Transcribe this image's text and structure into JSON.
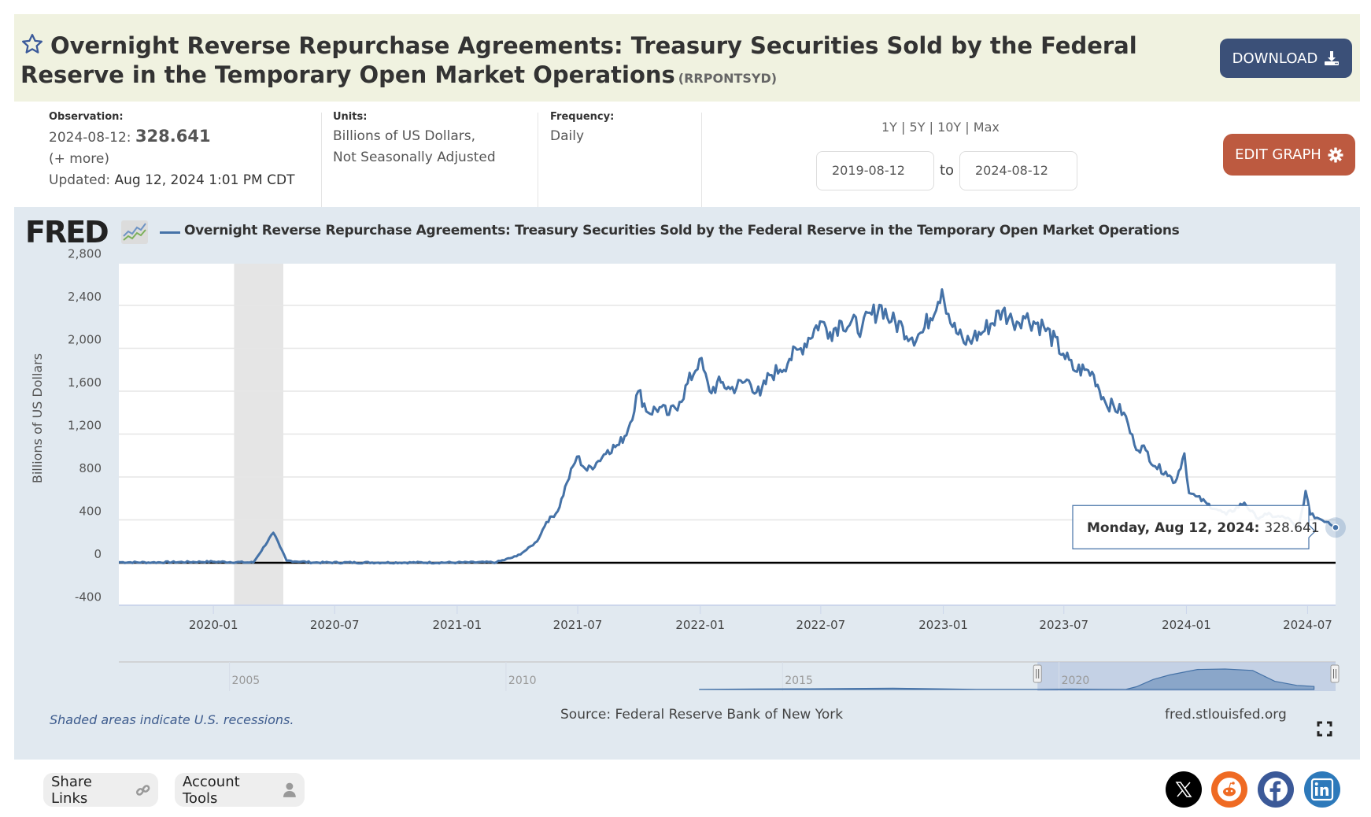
{
  "header": {
    "title": "Overnight Reverse Repurchase Agreements: Treasury Securities Sold by the Federal Reserve in the Temporary Open Market Operations",
    "series_id": "(RRPONTSYD)",
    "download_label": "DOWNLOAD"
  },
  "meta": {
    "observation_label": "Observation:",
    "observation_date": "2024-08-12:",
    "observation_value": "328.641",
    "more_link": "(+ more)",
    "updated_label": "Updated:",
    "updated_value": "Aug 12, 2024 1:01 PM CDT",
    "units_label": "Units:",
    "units_line1": "Billions of US Dollars,",
    "units_line2": "Not Seasonally Adjusted",
    "frequency_label": "Frequency:",
    "frequency_value": "Daily"
  },
  "range": {
    "links": [
      "1Y",
      "5Y",
      "10Y",
      "Max"
    ],
    "separator": "|",
    "start_date": "2019-08-12",
    "to_label": "to",
    "end_date": "2024-08-12",
    "edit_label": "EDIT GRAPH"
  },
  "chart_panel": {
    "logo": "FRED",
    "recession_note": "Shaded areas indicate U.S. recessions.",
    "source": "Source: Federal Reserve Bank of New York",
    "url": "fred.stlouisfed.org",
    "tooltip_date": "Monday, Aug 12, 2024:",
    "tooltip_value": "328.641"
  },
  "colors": {
    "series": "#4572a7",
    "download_button": "#3b5078",
    "edit_button": "#bd5a40",
    "recession_shade": "#e5e5e5",
    "panel_bg": "#e1e9f0",
    "title_bg": "#f0f2e0"
  },
  "chart_data": {
    "type": "line",
    "title": "Overnight Reverse Repurchase Agreements: Treasury Securities Sold by the Federal Reserve in the Temporary Open Market Operations",
    "xlabel": "",
    "ylabel": "Billions of US Dollars",
    "xlim": [
      "2019-08-12",
      "2024-08-12"
    ],
    "ylim": [
      -400,
      2800
    ],
    "yticks": [
      -400,
      0,
      400,
      800,
      1200,
      1600,
      2000,
      2400,
      2800
    ],
    "ytick_labels": [
      "-400",
      "0",
      "400",
      "800",
      "1,200",
      "1,600",
      "2,000",
      "2,400",
      "2,800"
    ],
    "xticks": [
      "2020-01",
      "2020-07",
      "2021-01",
      "2021-07",
      "2022-01",
      "2022-07",
      "2023-01",
      "2023-07",
      "2024-01",
      "2024-07"
    ],
    "grid": true,
    "legend": "top-left",
    "recessions": [
      {
        "start": "2020-02",
        "end": "2020-04"
      }
    ],
    "series": [
      {
        "name": "Overnight Reverse Repurchase Agreements: Treasury Securities Sold by the Federal Reserve in the Temporary Open Market Operations",
        "points": [
          [
            "2019-08-12",
            5
          ],
          [
            "2019-10-01",
            3
          ],
          [
            "2019-12-31",
            10
          ],
          [
            "2020-03-01",
            2
          ],
          [
            "2020-03-31",
            280
          ],
          [
            "2020-04-10",
            150
          ],
          [
            "2020-04-20",
            20
          ],
          [
            "2020-06-01",
            2
          ],
          [
            "2021-01-01",
            2
          ],
          [
            "2021-03-01",
            5
          ],
          [
            "2021-03-31",
            60
          ],
          [
            "2021-04-15",
            120
          ],
          [
            "2021-05-01",
            200
          ],
          [
            "2021-05-15",
            380
          ],
          [
            "2021-06-01",
            480
          ],
          [
            "2021-06-15",
            750
          ],
          [
            "2021-06-30",
            990
          ],
          [
            "2021-07-15",
            860
          ],
          [
            "2021-08-01",
            950
          ],
          [
            "2021-08-15",
            1050
          ],
          [
            "2021-09-01",
            1100
          ],
          [
            "2021-09-15",
            1250
          ],
          [
            "2021-09-30",
            1600
          ],
          [
            "2021-10-15",
            1400
          ],
          [
            "2021-11-01",
            1450
          ],
          [
            "2021-11-15",
            1380
          ],
          [
            "2021-12-01",
            1500
          ],
          [
            "2021-12-31",
            1900
          ],
          [
            "2022-01-15",
            1600
          ],
          [
            "2022-02-01",
            1680
          ],
          [
            "2022-02-15",
            1620
          ],
          [
            "2022-03-15",
            1700
          ],
          [
            "2022-04-01",
            1560
          ],
          [
            "2022-04-15",
            1750
          ],
          [
            "2022-05-01",
            1800
          ],
          [
            "2022-05-15",
            1900
          ],
          [
            "2022-06-01",
            2000
          ],
          [
            "2022-06-30",
            2250
          ],
          [
            "2022-07-15",
            2150
          ],
          [
            "2022-08-01",
            2250
          ],
          [
            "2022-09-01",
            2200
          ],
          [
            "2022-09-30",
            2400
          ],
          [
            "2022-10-15",
            2250
          ],
          [
            "2022-11-01",
            2200
          ],
          [
            "2022-11-15",
            2100
          ],
          [
            "2022-12-01",
            2150
          ],
          [
            "2022-12-30",
            2550
          ],
          [
            "2023-01-15",
            2200
          ],
          [
            "2023-02-01",
            2050
          ],
          [
            "2023-02-15",
            2100
          ],
          [
            "2023-03-01",
            2150
          ],
          [
            "2023-03-31",
            2350
          ],
          [
            "2023-04-15",
            2250
          ],
          [
            "2023-05-01",
            2300
          ],
          [
            "2023-06-01",
            2200
          ],
          [
            "2023-06-30",
            1950
          ],
          [
            "2023-07-15",
            1800
          ],
          [
            "2023-08-01",
            1800
          ],
          [
            "2023-08-15",
            1750
          ],
          [
            "2023-09-01",
            1500
          ],
          [
            "2023-09-29",
            1400
          ],
          [
            "2023-10-15",
            1100
          ],
          [
            "2023-11-01",
            1050
          ],
          [
            "2023-11-15",
            900
          ],
          [
            "2023-12-01",
            850
          ],
          [
            "2023-12-15",
            750
          ],
          [
            "2023-12-29",
            1020
          ],
          [
            "2024-01-05",
            650
          ],
          [
            "2024-01-15",
            620
          ],
          [
            "2024-02-01",
            550
          ],
          [
            "2024-02-15",
            500
          ],
          [
            "2024-03-01",
            450
          ],
          [
            "2024-03-28",
            560
          ],
          [
            "2024-04-15",
            420
          ],
          [
            "2024-05-01",
            450
          ],
          [
            "2024-05-15",
            430
          ],
          [
            "2024-06-01",
            420
          ],
          [
            "2024-06-17",
            300
          ],
          [
            "2024-06-28",
            670
          ],
          [
            "2024-07-05",
            450
          ],
          [
            "2024-07-15",
            420
          ],
          [
            "2024-08-01",
            380
          ],
          [
            "2024-08-12",
            328.641
          ]
        ]
      }
    ],
    "navigator": {
      "labels": [
        "2005",
        "2010",
        "2015",
        "2020"
      ],
      "selection": [
        "2019-08-12",
        "2024-08-12"
      ]
    },
    "tooltip": {
      "date": "Monday, Aug 12, 2024",
      "value": 328.641
    }
  },
  "footer": {
    "share_label": "Share Links",
    "account_label": "Account Tools",
    "social": [
      "x",
      "reddit",
      "facebook",
      "linkedin"
    ]
  }
}
